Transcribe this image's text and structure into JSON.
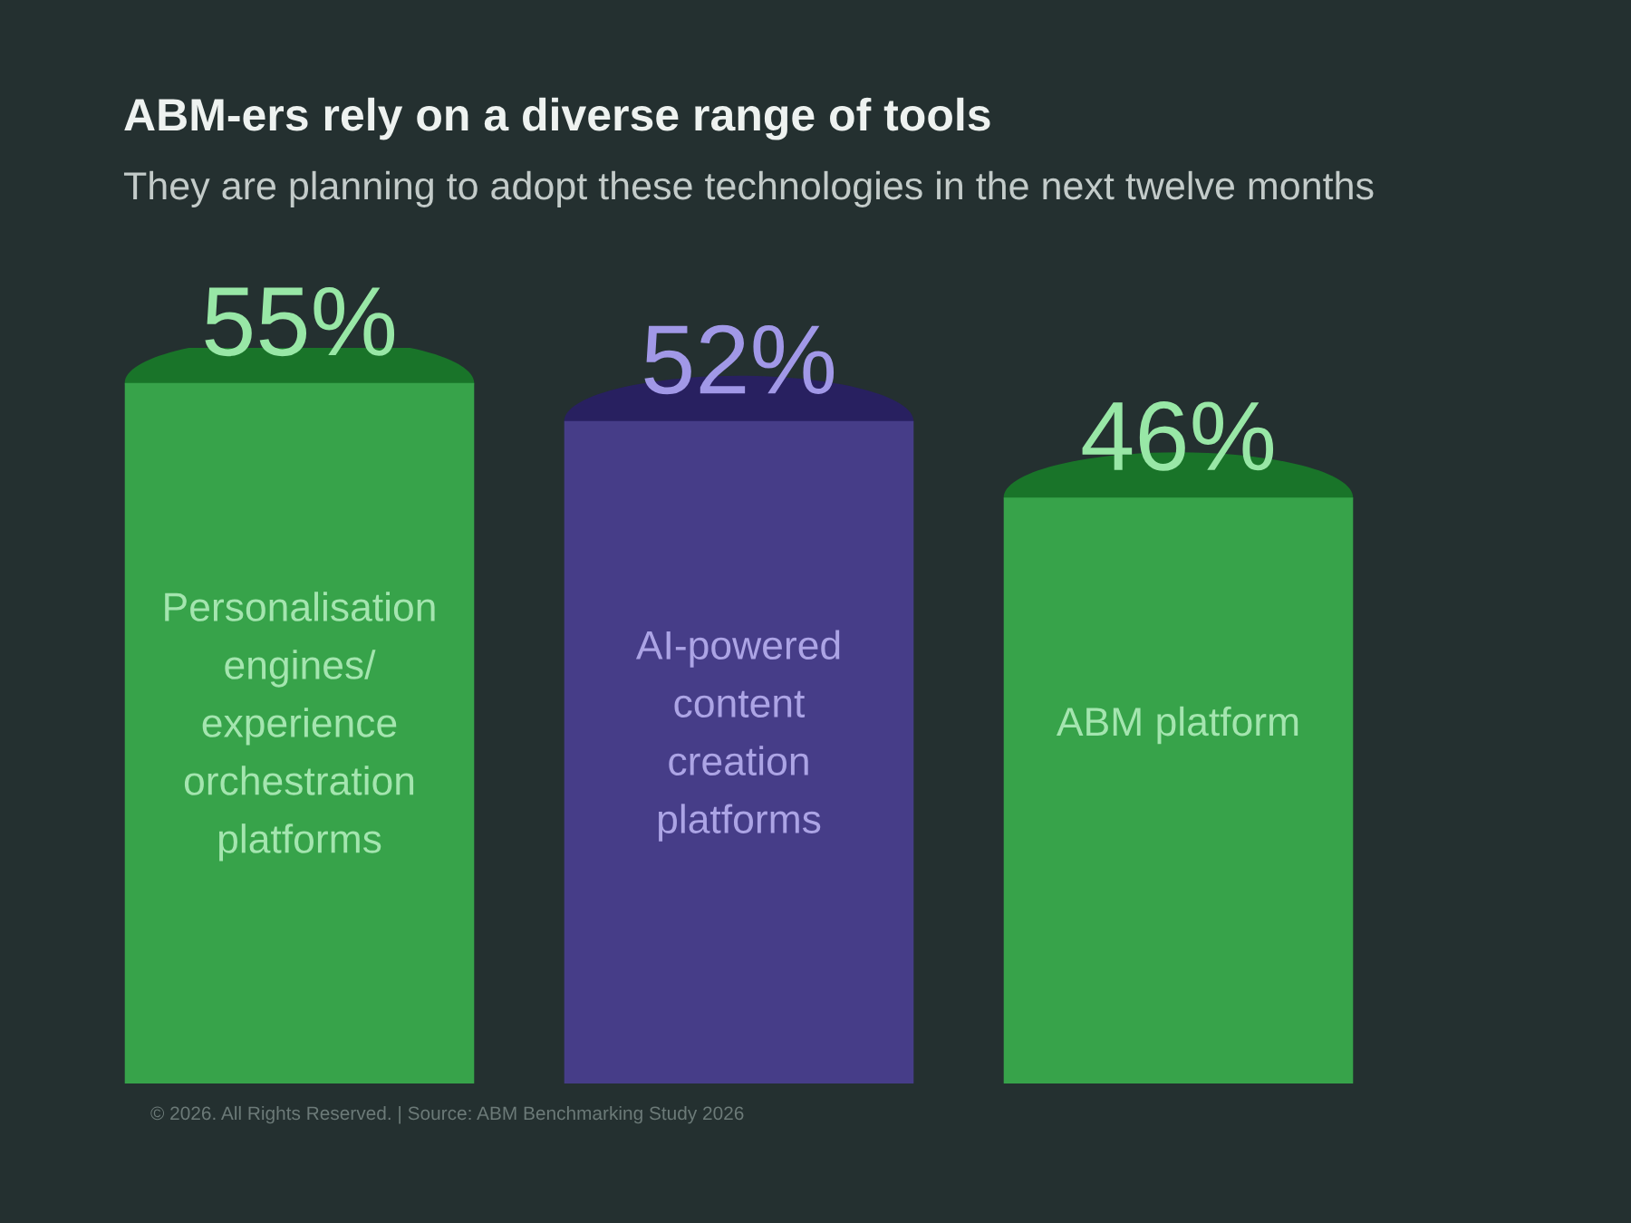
{
  "chart_data": {
    "type": "bar",
    "title": "ABM-ers rely on a diverse range of tools",
    "subtitle": "They are planning to adopt these technologies in the next twelve months",
    "categories": [
      "Personalisation\nengines/\nexperience\norchestration\nplatforms",
      "AI-powered\ncontent\ncreation\nplatforms",
      "ABM platform"
    ],
    "values": [
      55,
      52,
      46
    ],
    "colors": [
      "#37a34a",
      "#463d88",
      "#37a34a"
    ],
    "value_labels": [
      "55%",
      "52%",
      "46%"
    ],
    "annotations": [
      "© 2026. All Rights Reserved. | Source: ABM Benchmarking Study 2026"
    ]
  }
}
